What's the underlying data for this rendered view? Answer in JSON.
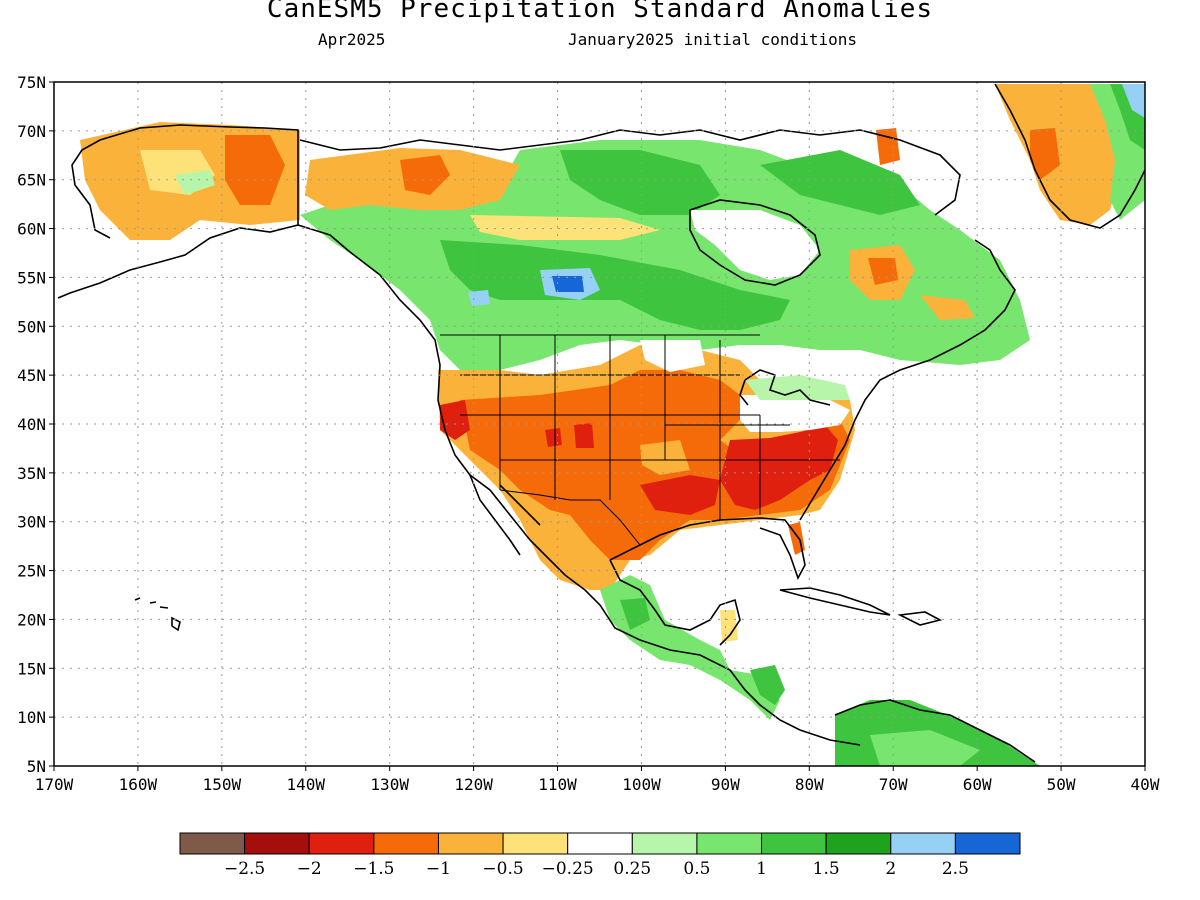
{
  "title": "CanESM5 Precipitation Standard Anomalies",
  "subtitle_left": "Apr2025",
  "subtitle_right": "January2025 initial conditions",
  "map": {
    "lon_range": [
      -170,
      -40
    ],
    "lat_range": [
      5,
      75
    ],
    "lat_ticks": [
      "75N",
      "70N",
      "65N",
      "60N",
      "55N",
      "50N",
      "45N",
      "40N",
      "35N",
      "30N",
      "25N",
      "20N",
      "15N",
      "10N",
      "5N"
    ],
    "lon_ticks": [
      "170W",
      "160W",
      "150W",
      "140W",
      "130W",
      "120W",
      "110W",
      "100W",
      "90W",
      "80W",
      "70W",
      "60W",
      "50W",
      "40W"
    ],
    "gridlines": "dotted"
  },
  "colorbar": {
    "colors": [
      "#7f5a4a",
      "#a40f0b",
      "#e0200f",
      "#f56b0a",
      "#fbb23a",
      "#fde27a",
      "#ffffff",
      "#b7f5ab",
      "#78e66e",
      "#3ec43f",
      "#1fa31e",
      "#96d1f5",
      "#1766d6"
    ],
    "labels": [
      "-2.5",
      "-2",
      "-1.5",
      "-1",
      "-0.5",
      "-0.25",
      "0.25",
      "0.5",
      "1",
      "1.5",
      "2",
      "2.5"
    ]
  },
  "anomaly_regions": [
    {
      "name": "alaska-dry",
      "level": "-1",
      "color": "#fbb23a"
    },
    {
      "name": "alaska-core",
      "level": "-1.5",
      "color": "#f56b0a"
    },
    {
      "name": "canada-wet",
      "level": "1",
      "color": "#78e66e"
    },
    {
      "name": "prairie-very-wet",
      "level": "2.5",
      "color": "#1766d6"
    },
    {
      "name": "west-us-dry",
      "level": "-1.5",
      "color": "#f56b0a"
    },
    {
      "name": "southeast-us-very-dry",
      "level": "-2",
      "color": "#e0200f"
    },
    {
      "name": "mexico-wet",
      "level": "1",
      "color": "#78e66e"
    },
    {
      "name": "greenland-dry",
      "level": "-1",
      "color": "#fbb23a"
    },
    {
      "name": "greenland-wet",
      "level": "1.5",
      "color": "#3ec43f"
    },
    {
      "name": "quebec-dry",
      "level": "-1",
      "color": "#fbb23a"
    },
    {
      "name": "south-america-wet",
      "level": "1.5",
      "color": "#3ec43f"
    }
  ]
}
